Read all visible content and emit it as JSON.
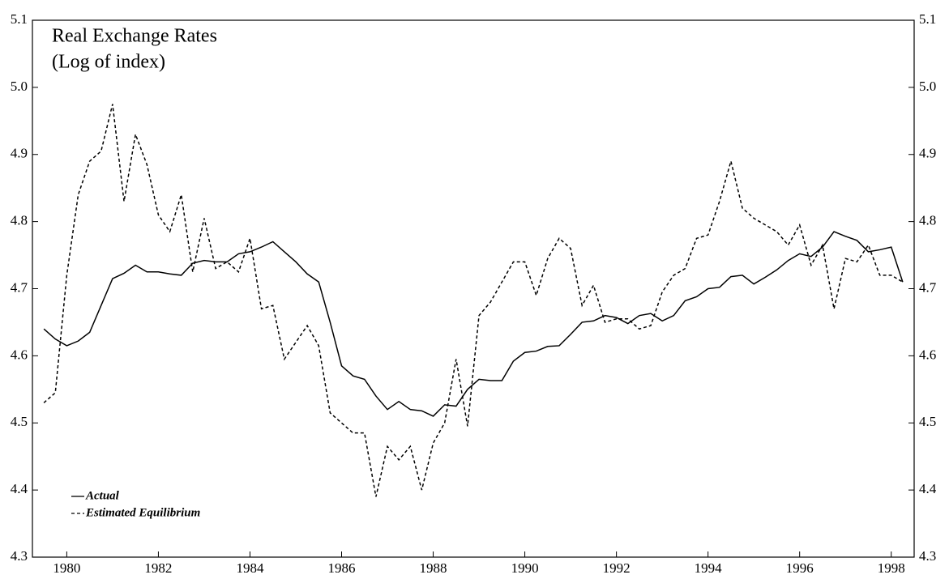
{
  "chart_data": {
    "type": "line",
    "title": "Real Exchange Rates",
    "subtitle": "(Log of index)",
    "x": [
      1979.5,
      1979.75,
      1980,
      1980.25,
      1980.5,
      1980.75,
      1981,
      1981.25,
      1981.5,
      1981.75,
      1982,
      1982.25,
      1982.5,
      1982.75,
      1983,
      1983.25,
      1983.5,
      1983.75,
      1984,
      1984.25,
      1984.5,
      1984.75,
      1985,
      1985.25,
      1985.5,
      1985.75,
      1986,
      1986.25,
      1986.5,
      1986.75,
      1987,
      1987.25,
      1987.5,
      1987.75,
      1988,
      1988.25,
      1988.5,
      1988.75,
      1989,
      1989.25,
      1989.5,
      1989.75,
      1990,
      1990.25,
      1990.5,
      1990.75,
      1991,
      1991.25,
      1991.5,
      1991.75,
      1992,
      1992.25,
      1992.5,
      1992.75,
      1993,
      1993.25,
      1993.5,
      1993.75,
      1994,
      1994.25,
      1994.5,
      1994.75,
      1995,
      1995.25,
      1995.5,
      1995.75,
      1996,
      1996.25,
      1996.5,
      1996.75,
      1997,
      1997.25,
      1997.5,
      1997.75,
      1998,
      1998.25
    ],
    "series": [
      {
        "name": "Actual",
        "color": "#000000",
        "style": "solid",
        "values": [
          4.64,
          4.625,
          4.615,
          4.622,
          4.635,
          4.675,
          4.715,
          4.723,
          4.735,
          4.725,
          4.725,
          4.722,
          4.72,
          4.738,
          4.742,
          4.74,
          4.74,
          4.752,
          4.755,
          4.762,
          4.77,
          4.755,
          4.74,
          4.722,
          4.71,
          4.65,
          4.585,
          4.57,
          4.565,
          4.54,
          4.52,
          4.532,
          4.52,
          4.518,
          4.51,
          4.527,
          4.525,
          4.55,
          4.565,
          4.563,
          4.563,
          4.592,
          4.605,
          4.607,
          4.614,
          4.615,
          4.632,
          4.65,
          4.652,
          4.66,
          4.657,
          4.648,
          4.66,
          4.663,
          4.652,
          4.66,
          4.682,
          4.688,
          4.7,
          4.702,
          4.718,
          4.72,
          4.707,
          4.717,
          4.728,
          4.742,
          4.752,
          4.748,
          4.762,
          4.785,
          4.778,
          4.772,
          4.755,
          4.758,
          4.762,
          4.71
        ]
      },
      {
        "name": "Estimated Equilibrium",
        "color": "#000000",
        "style": "dashed",
        "values": [
          4.53,
          4.545,
          4.72,
          4.84,
          4.89,
          4.905,
          4.975,
          4.83,
          4.93,
          4.885,
          4.81,
          4.785,
          4.84,
          4.725,
          4.805,
          4.73,
          4.74,
          4.725,
          4.775,
          4.67,
          4.675,
          4.595,
          4.62,
          4.645,
          4.615,
          4.515,
          4.5,
          4.485,
          4.485,
          4.39,
          4.465,
          4.445,
          4.465,
          4.4,
          4.47,
          4.5,
          4.595,
          4.495,
          4.66,
          4.68,
          4.71,
          4.74,
          4.74,
          4.69,
          4.745,
          4.775,
          4.76,
          4.675,
          4.705,
          4.65,
          4.655,
          4.655,
          4.64,
          4.645,
          4.695,
          4.72,
          4.73,
          4.775,
          4.78,
          4.83,
          4.89,
          4.82,
          4.805,
          4.795,
          4.785,
          4.765,
          4.795,
          4.735,
          4.765,
          4.67,
          4.745,
          4.74,
          4.765,
          4.72,
          4.72,
          4.71
        ]
      }
    ],
    "xlim": [
      1979.25,
      1998.5
    ],
    "xticks": [
      1980,
      1982,
      1984,
      1986,
      1988,
      1990,
      1992,
      1994,
      1996,
      1998
    ],
    "ylim": [
      4.3,
      5.1
    ],
    "yticks": [
      4.3,
      4.4,
      4.5,
      4.6,
      4.7,
      4.8,
      4.9,
      {
        "value": 5,
        "label": "5.0"
      },
      5.1
    ],
    "y2lim": [
      4.3,
      5.1
    ],
    "y2ticks": [
      4.3,
      4.4,
      4.5,
      4.6,
      4.7,
      4.8,
      4.9,
      {
        "value": 5,
        "label": "5.0"
      },
      5.1
    ],
    "legend": "lower-left"
  }
}
